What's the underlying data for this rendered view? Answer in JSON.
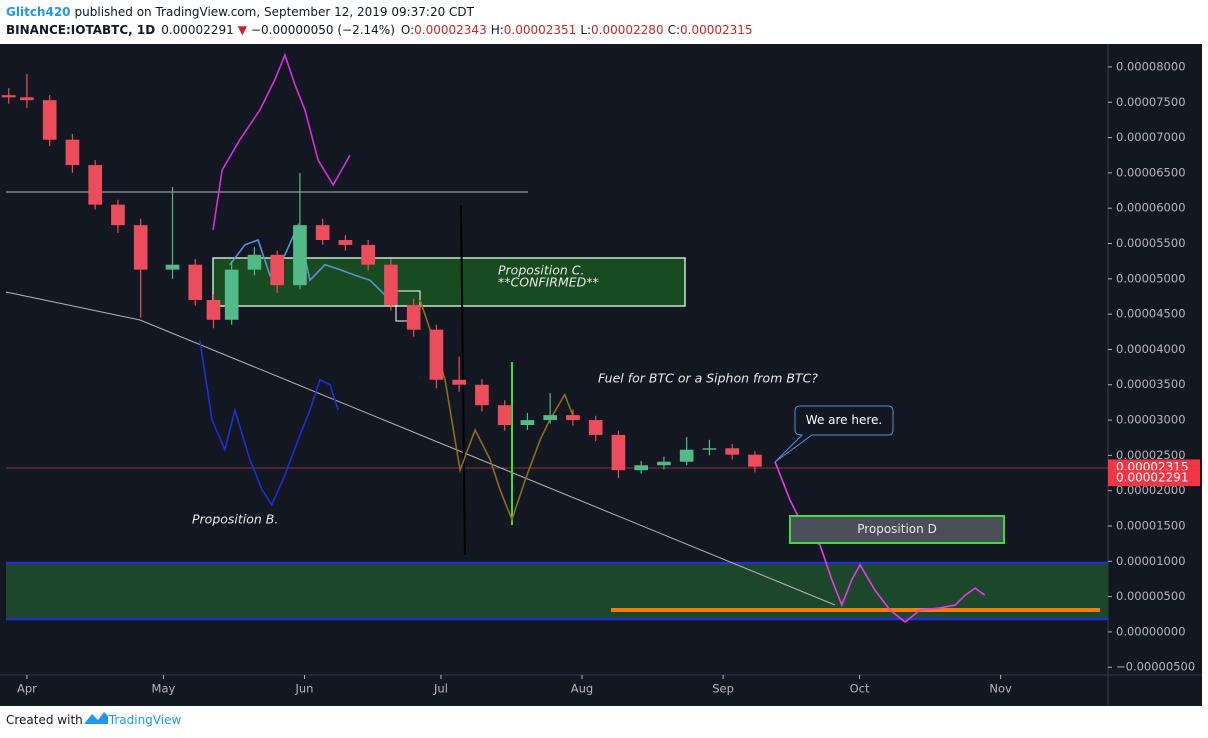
{
  "header": {
    "author": "Glitch420",
    "published": "published on TradingView.com, September 12, 2019 09:37:20 CDT",
    "symbol": "BINANCE:IOTABTC, 1D",
    "last": "0.00002291",
    "arrow": "▼",
    "change": "−0.00000050 (−2.14%)",
    "open_label": "O:",
    "open": "0.00002343",
    "high_label": "H:",
    "high": "0.00002351",
    "low_label": "L:",
    "low": "0.00002280",
    "close_label": "C:",
    "close": "0.00002315"
  },
  "footer": {
    "created": "Created with",
    "brand": "TradingView"
  },
  "chart_data": {
    "type": "candlestick",
    "xlim": [
      -4.6,
      237.6
    ],
    "xticks": [
      {
        "value": 0,
        "label": "Apr"
      },
      {
        "value": 30,
        "label": "May"
      },
      {
        "value": 61,
        "label": "Jun"
      },
      {
        "value": 91,
        "label": "Jul"
      },
      {
        "value": 122,
        "label": "Aug"
      },
      {
        "value": 153,
        "label": "Sep"
      },
      {
        "value": 183,
        "label": "Oct"
      },
      {
        "value": 214,
        "label": "Nov"
      }
    ],
    "ylim": [
      -6.1e-06,
      8.24e-05
    ],
    "yticks": [
      {
        "value": -5e-06,
        "label": "−0.00000500"
      },
      {
        "value": 0,
        "label": "0.00000000"
      },
      {
        "value": 5e-06,
        "label": "0.00000500"
      },
      {
        "value": 1e-05,
        "label": "0.00001000"
      },
      {
        "value": 1.5e-05,
        "label": "0.00001500"
      },
      {
        "value": 2e-05,
        "label": "0.00002000"
      },
      {
        "value": 2.5e-05,
        "label": "0.00002500"
      },
      {
        "value": 3e-05,
        "label": "0.00003000"
      },
      {
        "value": 3.5e-05,
        "label": "0.00003500"
      },
      {
        "value": 4e-05,
        "label": "0.00004000"
      },
      {
        "value": 4.5e-05,
        "label": "0.00004500"
      },
      {
        "value": 5e-05,
        "label": "0.00005000"
      },
      {
        "value": 5.5e-05,
        "label": "0.00005500"
      },
      {
        "value": 6e-05,
        "label": "0.00006000"
      },
      {
        "value": 6.5e-05,
        "label": "0.00006500"
      },
      {
        "value": 7e-05,
        "label": "0.00007000"
      },
      {
        "value": 7.5e-05,
        "label": "0.00007500"
      },
      {
        "value": 8e-05,
        "label": "0.00008000"
      }
    ],
    "up_color": "#53b987",
    "down_color": "#eb4d5c",
    "x": [
      -4,
      0,
      5,
      10,
      15,
      20,
      25,
      32,
      37,
      41,
      45,
      50,
      55,
      60,
      65,
      70,
      75,
      80,
      85,
      90,
      95,
      100,
      105,
      110,
      115,
      120,
      125,
      130,
      135,
      140,
      145,
      150,
      155,
      160
    ],
    "open": [
      7.6e-05,
      7.57e-05,
      7.53e-05,
      6.97e-05,
      6.61e-05,
      6.05e-05,
      5.76e-05,
      5.13e-05,
      5.2e-05,
      4.7e-05,
      4.42e-05,
      5.13e-05,
      5.34e-05,
      4.91e-05,
      5.76e-05,
      5.55e-05,
      5.48e-05,
      5.2e-05,
      4.63e-05,
      4.28e-05,
      3.57e-05,
      3.5e-05,
      3.21e-05,
      2.93e-05,
      3e-05,
      3.07e-05,
      3e-05,
      2.79e-05,
      2.29e-05,
      2.36e-05,
      2.41e-05,
      2.58e-05,
      2.6e-05,
      2.51e-05
    ],
    "high": [
      7.7e-05,
      7.9e-05,
      7.6e-05,
      7.05e-05,
      6.68e-05,
      6.12e-05,
      5.85e-05,
      6.3e-05,
      5.28e-05,
      4.78e-05,
      5.25e-05,
      5.45e-05,
      5.4e-05,
      6.5e-05,
      5.85e-05,
      5.62e-05,
      5.55e-05,
      5.28e-05,
      4.72e-05,
      4.35e-05,
      3.9e-05,
      3.58e-05,
      3.28e-05,
      3.1e-05,
      3.38e-05,
      3.15e-05,
      3.06e-05,
      2.85e-05,
      2.42e-05,
      2.48e-05,
      2.76e-05,
      2.72e-05,
      2.66e-05,
      2.56e-05
    ],
    "low": [
      7.48e-05,
      7.42e-05,
      6.88e-05,
      6.5e-05,
      5.98e-05,
      5.65e-05,
      4.45e-05,
      5e-05,
      4.62e-05,
      4.3e-05,
      4.35e-05,
      5.05e-05,
      4.8e-05,
      4.85e-05,
      5.48e-05,
      5.4e-05,
      5.12e-05,
      4.55e-05,
      4.18e-05,
      3.45e-05,
      3.4e-05,
      3.12e-05,
      2.85e-05,
      2.86e-05,
      2.95e-05,
      2.92e-05,
      2.7e-05,
      2.18e-05,
      2.24e-05,
      2.3e-05,
      2.36e-05,
      2.5e-05,
      2.44e-05,
      2.26e-05
    ],
    "close": [
      7.57e-05,
      7.53e-05,
      6.97e-05,
      6.61e-05,
      6.05e-05,
      5.76e-05,
      5.13e-05,
      5.2e-05,
      4.7e-05,
      4.42e-05,
      5.13e-05,
      5.34e-05,
      4.91e-05,
      5.76e-05,
      5.55e-05,
      5.48e-05,
      5.2e-05,
      4.63e-05,
      4.28e-05,
      3.57e-05,
      3.5e-05,
      3.21e-05,
      2.93e-05,
      3e-05,
      3.07e-05,
      3e-05,
      2.79e-05,
      2.29e-05,
      2.36e-05,
      2.41e-05,
      2.58e-05,
      2.6e-05,
      2.51e-05,
      2.34e-05
    ],
    "series": [
      {
        "color": "#d62fd6",
        "x": [
          40.9,
          42.9,
          46.8,
          51.2,
          54.5,
          56.7,
          58.9,
          61.1,
          64,
          67.3,
          71
        ],
        "values": [
          5.69e-05,
          6.54e-05,
          6.97e-05,
          7.39e-05,
          7.82e-05,
          8.17e-05,
          7.75e-05,
          7.39e-05,
          6.68e-05,
          6.33e-05,
          6.75e-05
        ]
      },
      {
        "color": "#1f2fd0",
        "x": [
          38,
          40.7,
          43.5,
          45.7,
          49,
          51.7,
          53.8,
          56.7,
          59.6,
          62.2,
          64.4,
          66.6,
          68.4
        ],
        "values": [
          4.13e-05,
          3e-05,
          2.58e-05,
          3.14e-05,
          2.44e-05,
          2.01e-05,
          1.8e-05,
          2.22e-05,
          2.72e-05,
          3.14e-05,
          3.57e-05,
          3.5e-05,
          3.14e-05
        ]
      },
      {
        "color": "#5b8fd6",
        "x": [
          44.6,
          47.9,
          50.8,
          53.4,
          56.7,
          59.6,
          62.2,
          65.5,
          68.8,
          72.1,
          75.4,
          78.7
        ],
        "values": [
          5.2e-05,
          5.48e-05,
          5.55e-05,
          5.05e-05,
          5.34e-05,
          5.76e-05,
          4.98e-05,
          5.2e-05,
          5.13e-05,
          5.05e-05,
          4.98e-05,
          4.77e-05
        ]
      },
      {
        "color": "#8a6d1a",
        "x": [
          86.4,
          88.6,
          91.9,
          95.2,
          98.5,
          101.8,
          104,
          106.6,
          109.5,
          112.8,
          114.9,
          118.2,
          120.4
        ],
        "values": [
          4.7e-05,
          4.28e-05,
          3.57e-05,
          2.29e-05,
          2.86e-05,
          2.44e-05,
          2.01e-05,
          1.59e-05,
          2.15e-05,
          2.72e-05,
          3e-05,
          3.36e-05,
          3e-05
        ]
      },
      {
        "color": "#e63be6",
        "x": [
          164.4,
          167.7,
          171,
          174.3,
          176.9,
          179.1,
          181.3,
          183.1,
          186.4,
          189.7,
          193,
          196.3,
          200.7,
          204,
          206.2,
          208.4,
          210.5
        ],
        "values": [
          2.41e-05,
          1.87e-05,
          1.44e-05,
          1.23e-05,
          7.4e-06,
          3.8e-06,
          7.4e-06,
          9.5e-06,
          5.9e-06,
          3.1e-06,
          1.4e-06,
          3.1e-06,
          3.4e-06,
          3.8e-06,
          5.2e-06,
          6.2e-06,
          5.2e-06
        ]
      }
    ],
    "price_labels": [
      {
        "value": 2.315e-05,
        "label": "0.00002315"
      },
      {
        "value": 2.291e-05,
        "label": "0.00002291"
      }
    ],
    "annotations": {
      "prop_c": "Proposition C.",
      "confirmed": "**CONFIRMED**",
      "fuel": "Fuel for BTC or a Siphon from BTC?",
      "here": "We are here.",
      "prop_b": "Proposition B.",
      "prop_d": "Proposition D"
    }
  }
}
